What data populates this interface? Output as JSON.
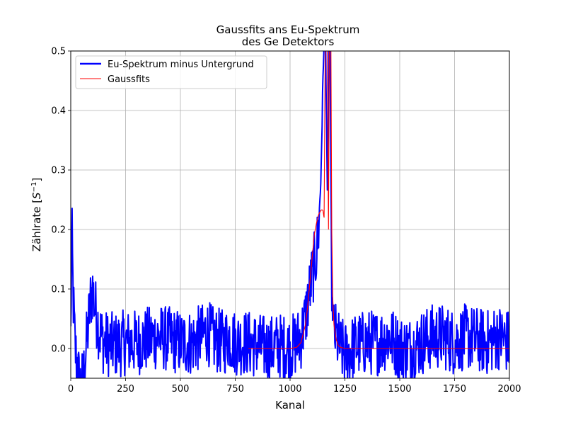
{
  "chart_data": {
    "type": "line",
    "title_line1": "Gaussfits ans Eu-Spektrum",
    "title_line2": "des Ge Detektors",
    "xlabel": "Kanal",
    "ylabel_main": "Zählrate [",
    "ylabel_base": "S",
    "ylabel_exp": "−1",
    "ylabel_close": "]",
    "xlim": [
      0,
      2000
    ],
    "ylim": [
      -0.05,
      0.5
    ],
    "xticks": [
      0,
      250,
      500,
      750,
      1000,
      1250,
      1500,
      1750,
      2000
    ],
    "xtick_labels": [
      "0",
      "250",
      "500",
      "750",
      "1000",
      "1250",
      "1500",
      "1750",
      "2000"
    ],
    "yticks": [
      0.0,
      0.1,
      0.2,
      0.3,
      0.4,
      0.5
    ],
    "ytick_labels": [
      "0.0",
      "0.1",
      "0.2",
      "0.3",
      "0.4",
      "0.5"
    ],
    "grid": true,
    "legend_position": "top-left",
    "series": [
      {
        "name": "Eu-Spektrum minus Untergrund",
        "color": "#0000ff",
        "style": "noisy-spectrum",
        "x": [
          0,
          5,
          10,
          15,
          20,
          30,
          40,
          50,
          60,
          70,
          80,
          90,
          100,
          110,
          120,
          130,
          140,
          150,
          200,
          250,
          300,
          350,
          400,
          450,
          500,
          550,
          600,
          620,
          650,
          700,
          720,
          750,
          800,
          850,
          900,
          950,
          1000,
          1030,
          1050,
          1070,
          1090,
          1100,
          1110,
          1120,
          1130,
          1140,
          1150,
          1160,
          1170,
          1180,
          1190,
          1200,
          1210,
          1230,
          1250,
          1300,
          1350,
          1400,
          1450,
          1500,
          1550,
          1600,
          1650,
          1700,
          1750,
          1800,
          1850,
          1900,
          1950,
          2000
        ],
        "y": [
          0.02,
          0.2,
          0.1,
          0.05,
          0.0,
          -0.03,
          -0.06,
          -0.06,
          -0.04,
          0.0,
          0.04,
          0.08,
          0.1,
          0.07,
          0.05,
          0.03,
          0.02,
          0.01,
          0.005,
          0.01,
          0.01,
          0.015,
          0.02,
          0.015,
          0.01,
          0.01,
          0.02,
          0.03,
          0.015,
          0.01,
          0.02,
          0.01,
          0.01,
          0.005,
          0.0,
          0.005,
          0.0,
          0.01,
          0.02,
          0.05,
          0.1,
          0.12,
          0.14,
          0.16,
          0.2,
          0.28,
          0.45,
          0.6,
          0.25,
          0.6,
          0.08,
          0.03,
          0.02,
          0.0,
          -0.01,
          0.005,
          0.01,
          0.01,
          0.02,
          0.0,
          0.0,
          0.01,
          0.02,
          0.02,
          0.01,
          0.02,
          0.015,
          0.01,
          0.02,
          0.01
        ],
        "noise_amplitude": 0.035
      },
      {
        "name": "Gaussfits",
        "color": "#ff0000",
        "style": "smooth",
        "x": [
          810,
          900,
          1000,
          1030,
          1050,
          1070,
          1080,
          1090,
          1100,
          1110,
          1120,
          1130,
          1140,
          1145,
          1150,
          1155,
          1160,
          1165,
          1170,
          1175,
          1180,
          1185,
          1190,
          1195,
          1200,
          1210,
          1220,
          1230,
          1250,
          1500,
          2000
        ],
        "y": [
          0.0,
          0.0,
          0.0,
          0.002,
          0.01,
          0.04,
          0.07,
          0.11,
          0.15,
          0.19,
          0.21,
          0.225,
          0.232,
          0.233,
          0.232,
          0.22,
          0.5,
          0.6,
          0.5,
          0.2,
          0.6,
          0.6,
          0.2,
          0.08,
          0.04,
          0.015,
          0.005,
          0.002,
          0.0,
          0.0,
          0.0
        ]
      }
    ]
  }
}
